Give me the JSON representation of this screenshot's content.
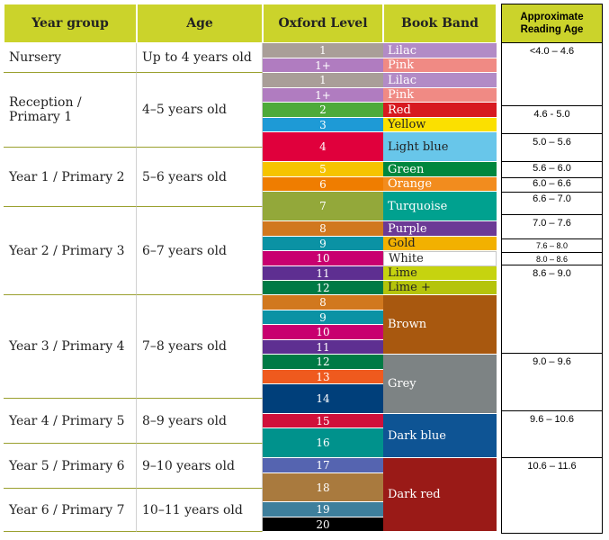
{
  "headers": {
    "year_group": "Year group",
    "age": "Age",
    "oxford_level": "Oxford Level",
    "book_band": "Book Band",
    "reading_age": "Approximate Reading Age"
  },
  "year_groups": [
    {
      "name": "Nursery",
      "age": "Up to 4 years old"
    },
    {
      "name": "Reception / Primary 1",
      "age": "4–5 years old"
    },
    {
      "name": "Year 1 / Primary 2",
      "age": "5–6 years old"
    },
    {
      "name": "Year 2 / Primary 3",
      "age": "6–7 years old"
    },
    {
      "name": "Year 3 / Primary 4",
      "age": "7–8 years old"
    },
    {
      "name": "Year 4 / Primary 5",
      "age": "8–9 years old"
    },
    {
      "name": "Year 5 / Primary 6",
      "age": "9–10 years old"
    },
    {
      "name": "Year 6 / Primary 7",
      "age": "10–11 years old"
    }
  ],
  "levels": [
    {
      "label": "1",
      "color": "#a99e98"
    },
    {
      "label": "1+",
      "color": "#b07cc0"
    },
    {
      "label": "1",
      "color": "#a99e98"
    },
    {
      "label": "1+",
      "color": "#b07cc0"
    },
    {
      "label": "2",
      "color": "#4eaa3a"
    },
    {
      "label": "3",
      "color": "#1e9ad6"
    },
    {
      "label": "4",
      "color": "#e0003c"
    },
    {
      "label": "5",
      "color": "#f6c400"
    },
    {
      "label": "6",
      "color": "#ef7d00"
    },
    {
      "label": "7",
      "color": "#93a83a"
    },
    {
      "label": "8",
      "color": "#d1781e"
    },
    {
      "label": "9",
      "color": "#0b92a4"
    },
    {
      "label": "10",
      "color": "#c8006f"
    },
    {
      "label": "11",
      "color": "#5e2f91"
    },
    {
      "label": "12",
      "color": "#007a45"
    },
    {
      "label": "8",
      "color": "#d1781e"
    },
    {
      "label": "9",
      "color": "#0b92a4"
    },
    {
      "label": "10",
      "color": "#c8006f"
    },
    {
      "label": "11",
      "color": "#5e2f91"
    },
    {
      "label": "12",
      "color": "#007a45"
    },
    {
      "label": "13",
      "color": "#ef5a1e"
    },
    {
      "label": "14",
      "color": "#003f7a"
    },
    {
      "label": "15",
      "color": "#d0103a"
    },
    {
      "label": "16",
      "color": "#00928c"
    },
    {
      "label": "17",
      "color": "#5564b0"
    },
    {
      "label": "18",
      "color": "#a97a3e"
    },
    {
      "label": "19",
      "color": "#3e7f9c"
    },
    {
      "label": "20",
      "color": "#000000"
    }
  ],
  "bands": [
    {
      "label": "Lilac",
      "color": "#b28bc6",
      "text_color": "#ffffff"
    },
    {
      "label": "Pink",
      "color": "#f08a84",
      "text_color": "#ffffff"
    },
    {
      "label": "Lilac",
      "color": "#b28bc6",
      "text_color": "#ffffff"
    },
    {
      "label": "Pink",
      "color": "#f08a84",
      "text_color": "#ffffff"
    },
    {
      "label": "Red",
      "color": "#d71920",
      "text_color": "#ffffff"
    },
    {
      "label": "Yellow",
      "color": "#fbe000",
      "text_color": "#222222"
    },
    {
      "label": "Light blue",
      "color": "#68c6ea",
      "text_color": "#222222"
    },
    {
      "label": "Green",
      "color": "#00873e",
      "text_color": "#ffffff"
    },
    {
      "label": "Orange",
      "color": "#f28c1e",
      "text_color": "#ffffff"
    },
    {
      "label": "Turquoise",
      "color": "#00a18f",
      "text_color": "#ffffff"
    },
    {
      "label": "Purple",
      "color": "#6c3a96",
      "text_color": "#ffffff"
    },
    {
      "label": "Gold",
      "color": "#f2b100",
      "text_color": "#222222"
    },
    {
      "label": "White",
      "color": "#ffffff",
      "text_color": "#222222"
    },
    {
      "label": "Lime",
      "color": "#c6d30f",
      "text_color": "#222222"
    },
    {
      "label": "Lime +",
      "color": "#b5c40b",
      "text_color": "#222222"
    },
    {
      "label": "Brown",
      "color": "#a8580f",
      "text_color": "#ffffff"
    },
    {
      "label": "Grey",
      "color": "#7d8384",
      "text_color": "#ffffff"
    },
    {
      "label": "Dark blue",
      "color": "#0e5494",
      "text_color": "#ffffff"
    },
    {
      "label": "Dark red",
      "color": "#9a1a17",
      "text_color": "#ffffff"
    }
  ],
  "reading_ages": [
    "<4.0 – 4.6",
    "4.6 - 5.0",
    "5.0 – 5.6",
    "5.6 – 6.0",
    "6.0 – 6.6",
    "6.6 – 7.0",
    "7.0 – 7.6",
    "7.6 – 8.0",
    "8.0 – 8.6",
    "8.6 – 9.0",
    "9.0 – 9.6",
    "9.6 – 10.6",
    "10.6 – 11.6"
  ]
}
